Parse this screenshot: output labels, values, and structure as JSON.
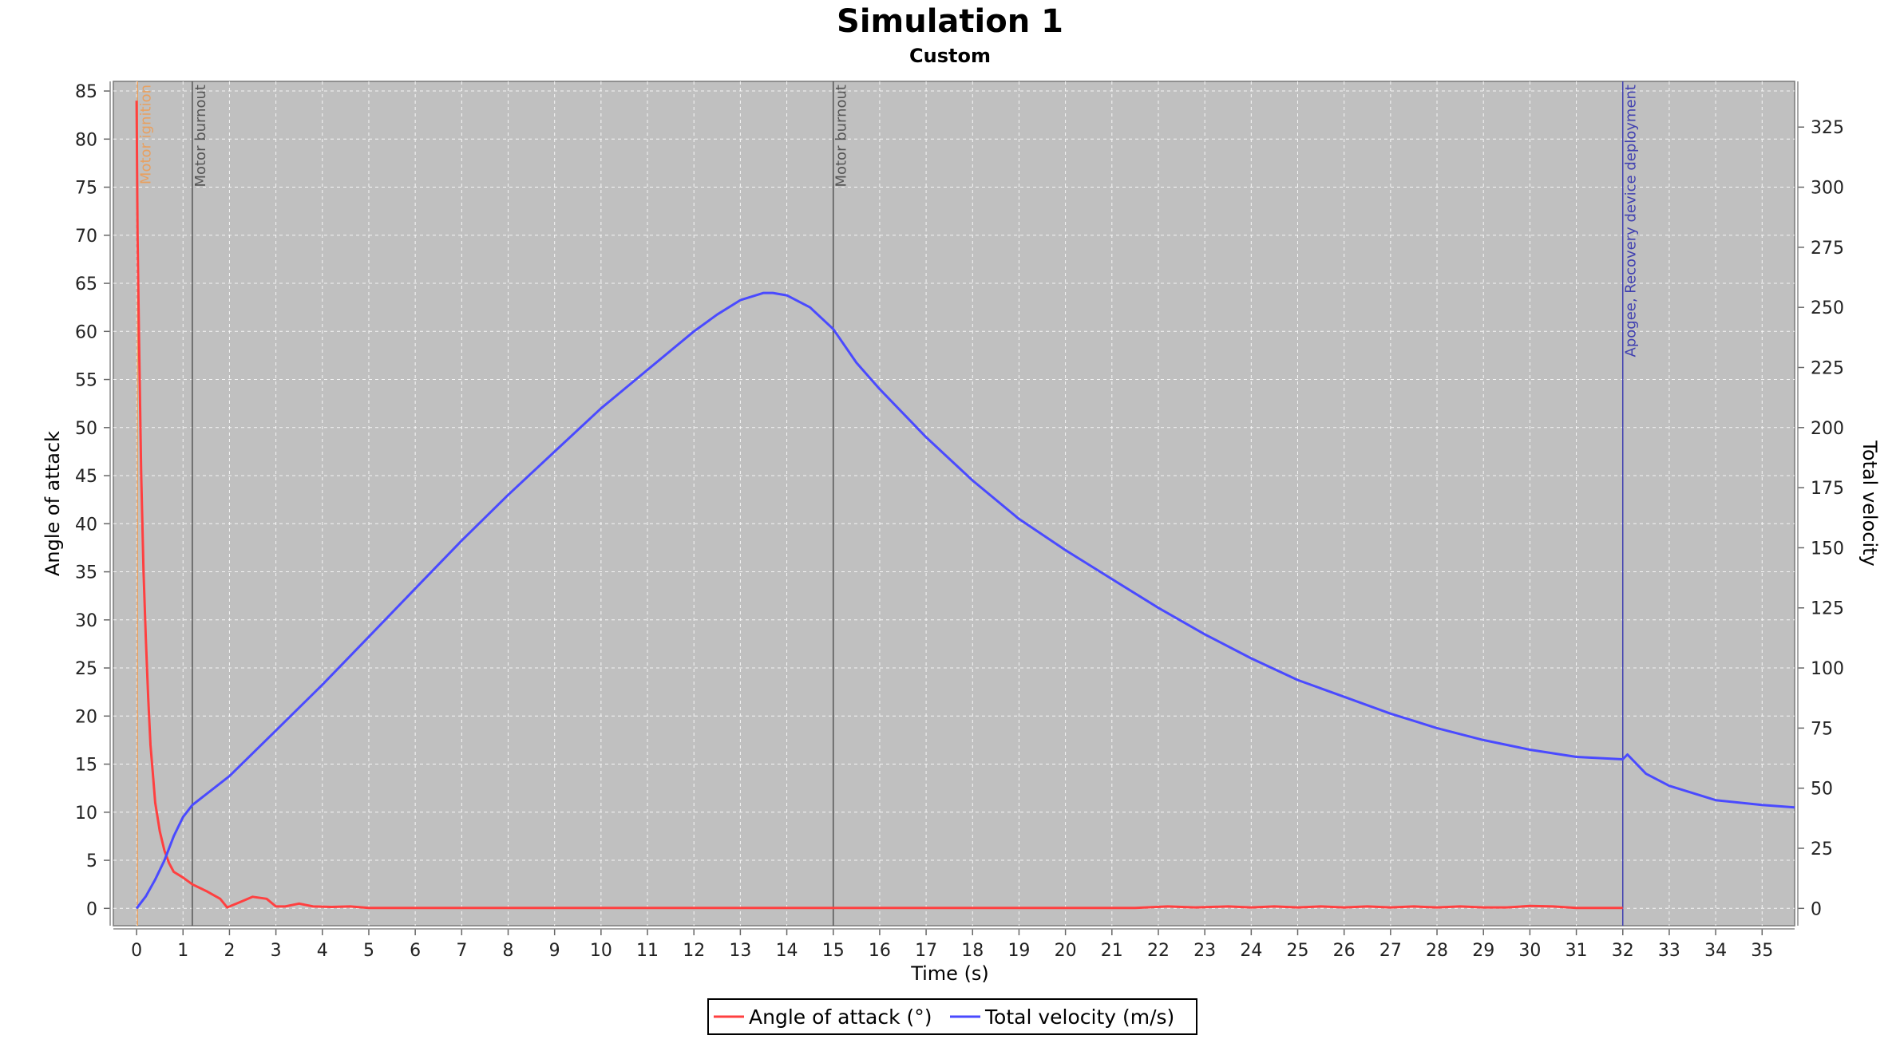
{
  "chart_data": {
    "type": "line",
    "title": "Simulation 1",
    "subtitle": "Custom",
    "xlabel": "Time (s)",
    "ylabel_left": "Angle of attack",
    "ylabel_right": "Total velocity",
    "xlim": [
      -0.5,
      35.7
    ],
    "ylim_left": [
      -1.8,
      86
    ],
    "ylim_right": [
      -7.2,
      344
    ],
    "x_ticks": [
      0,
      1,
      2,
      3,
      4,
      5,
      6,
      7,
      8,
      9,
      10,
      11,
      12,
      13,
      14,
      15,
      16,
      17,
      18,
      19,
      20,
      21,
      22,
      23,
      24,
      25,
      26,
      27,
      28,
      29,
      30,
      31,
      32,
      33,
      34,
      35
    ],
    "y_ticks_left": [
      0,
      5,
      10,
      15,
      20,
      25,
      30,
      35,
      40,
      45,
      50,
      55,
      60,
      65,
      70,
      75,
      80,
      85
    ],
    "y_ticks_right": [
      0,
      25,
      50,
      75,
      100,
      125,
      150,
      175,
      200,
      225,
      250,
      275,
      300,
      325
    ],
    "grid": true,
    "legend_position": "bottom",
    "background_color": "#c0c0c0",
    "events": [
      {
        "label": "Motor ignition",
        "x": 0.02,
        "color": "#e8a060"
      },
      {
        "label": "Motor burnout",
        "x": 1.2,
        "color": "#555555"
      },
      {
        "label": "Motor burnout",
        "x": 15.0,
        "color": "#555555"
      },
      {
        "label": "Apogee, Recovery device deployment",
        "x": 32.0,
        "color": "#4040b0"
      }
    ],
    "series": [
      {
        "name": "Angle of attack (°)",
        "axis": "left",
        "color": "#ff4040",
        "x": [
          0,
          0.02,
          0.05,
          0.1,
          0.15,
          0.2,
          0.25,
          0.3,
          0.35,
          0.4,
          0.5,
          0.6,
          0.7,
          0.8,
          1.0,
          1.2,
          1.5,
          1.8,
          1.95,
          2.2,
          2.5,
          2.8,
          3.0,
          3.2,
          3.5,
          3.8,
          4.2,
          4.6,
          5.0,
          6,
          8,
          10,
          12,
          14,
          16,
          18,
          20,
          21.5,
          22.2,
          22.8,
          23.5,
          24,
          24.5,
          25,
          25.5,
          26,
          26.5,
          27,
          27.5,
          28,
          28.5,
          29,
          29.5,
          30,
          30.5,
          31,
          32
        ],
        "values": [
          84,
          70,
          60,
          45,
          35,
          28,
          22,
          17,
          14,
          11,
          8,
          6,
          4.7,
          3.8,
          3.2,
          2.5,
          1.8,
          1.0,
          0.1,
          0.6,
          1.2,
          1.0,
          0.2,
          0.2,
          0.5,
          0.2,
          0.15,
          0.2,
          0.05,
          0.05,
          0.05,
          0.05,
          0.05,
          0.05,
          0.05,
          0.05,
          0.05,
          0.05,
          0.2,
          0.1,
          0.2,
          0.1,
          0.2,
          0.1,
          0.2,
          0.1,
          0.2,
          0.1,
          0.2,
          0.1,
          0.2,
          0.1,
          0.1,
          0.25,
          0.2,
          0.05,
          0.05
        ]
      },
      {
        "name": "Total velocity (m/s)",
        "axis": "right",
        "color": "#4a4aff",
        "x": [
          0,
          0.2,
          0.4,
          0.6,
          0.8,
          1.0,
          1.2,
          2,
          3,
          4,
          5,
          6,
          7,
          8,
          9,
          10,
          11,
          12,
          12.5,
          13,
          13.5,
          13.7,
          14.0,
          14.5,
          15.0,
          15.5,
          16,
          17,
          18,
          19,
          20,
          21,
          22,
          23,
          24,
          25,
          26,
          27,
          28,
          29,
          30,
          31,
          32,
          32.1,
          32.5,
          33,
          34,
          35,
          35.7
        ],
        "values": [
          0,
          5,
          12,
          20,
          30,
          38,
          43,
          55,
          74,
          93,
          113,
          133,
          153,
          172,
          190,
          208,
          224,
          240,
          247,
          253,
          256,
          256,
          255,
          250,
          241,
          227,
          216,
          196,
          178,
          162,
          149,
          137,
          125,
          114,
          104,
          95,
          88,
          81,
          75,
          70,
          66,
          63,
          62,
          64,
          56,
          51,
          45,
          43,
          42
        ]
      }
    ]
  }
}
